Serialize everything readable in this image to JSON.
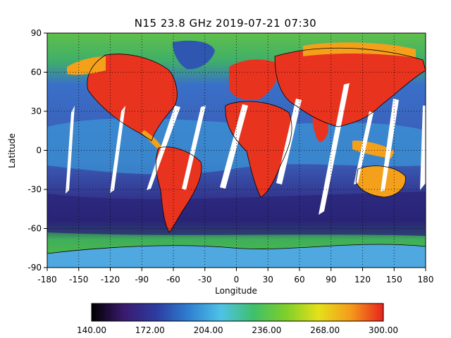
{
  "title": "N15 23.8 GHz 2019-07-21 07:30",
  "map": {
    "xlabel": "Longitude",
    "ylabel": "Latitude",
    "xlim": [
      -180,
      180
    ],
    "ylim": [
      -90,
      90
    ],
    "x_ticks": [
      "-180",
      "-150",
      "-120",
      "-90",
      "-60",
      "-30",
      "0",
      "30",
      "60",
      "90",
      "120",
      "150",
      "180"
    ],
    "y_ticks": [
      "90",
      "60",
      "30",
      "0",
      "-30",
      "-60",
      "-90"
    ],
    "grid": true,
    "grid_style": "dotted"
  },
  "colorbar": {
    "labels": [
      "140.00",
      "172.00",
      "204.00",
      "236.00",
      "268.00",
      "300.00"
    ],
    "range": [
      140,
      300
    ],
    "colors": [
      "#000000",
      "#3a1a6e",
      "#2c3ca0",
      "#2f7fd2",
      "#4fc3e6",
      "#3fbf6a",
      "#7fcf2a",
      "#e6e01a",
      "#f59a1a",
      "#e8231e"
    ]
  },
  "colors": {
    "ocean_cold": "#2b2a8c",
    "ocean_mid": "#3a5ec0",
    "ocean_warm": "#3aa8e0",
    "land_hot": "#e8331e",
    "land_warm": "#f5a01a",
    "polar": "#3fbf6a",
    "swath_gap": "#ffffff"
  }
}
